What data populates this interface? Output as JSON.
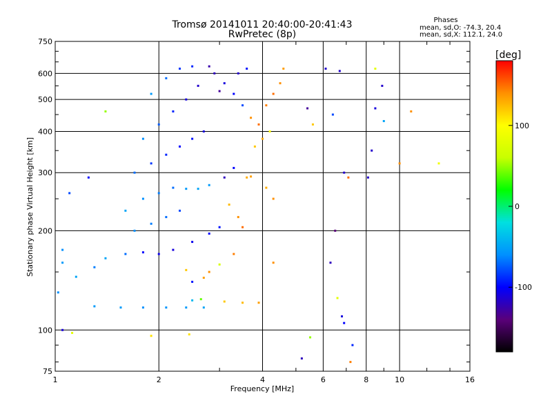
{
  "chart_data": {
    "type": "scatter",
    "title": "Tromsø 20141011 20:40:00-20:41:43",
    "subtitle": "RwPretec (8p)",
    "xlabel": "Frequency [MHz]",
    "ylabel": "Stationary phase Virtual Height [km]",
    "x_scale": "log",
    "y_scale": "log",
    "xlim": [
      1,
      16
    ],
    "ylim": [
      75,
      750
    ],
    "x_ticks": [
      1,
      2,
      4,
      6,
      8,
      10,
      16
    ],
    "x_tick_labels": [
      "1",
      "2",
      "4",
      "6",
      "8",
      "10",
      "16"
    ],
    "y_ticks": [
      75,
      100,
      200,
      300,
      400,
      500,
      600,
      750
    ],
    "y_tick_labels": [
      "75",
      "100",
      "200",
      "300",
      "400",
      "500",
      "600",
      "750"
    ],
    "grid": true,
    "stats_header": "Phases",
    "stats": [
      "mean, sd,O: -74.3, 20.4",
      "mean, sd,X: 112.1, 24.0"
    ],
    "colorbar": {
      "label": "[deg]",
      "range": [
        -180,
        180
      ],
      "ticks": [
        100,
        0,
        -100
      ],
      "tick_labels": [
        "100",
        "0",
        "-100"
      ],
      "colors": [
        "#000000",
        "#5a007a",
        "#0000ff",
        "#0090ff",
        "#00e0e0",
        "#00ff00",
        "#c8ff00",
        "#ffff00",
        "#ff9000",
        "#ff0000"
      ]
    },
    "series": [
      {
        "points": [
          [
            1.02,
            130,
            -60
          ],
          [
            1.3,
            118,
            -55
          ],
          [
            1.55,
            117,
            -55
          ],
          [
            1.8,
            117,
            -60
          ],
          [
            2.1,
            117,
            -58
          ],
          [
            2.4,
            117,
            -55
          ],
          [
            2.7,
            117,
            -50
          ],
          [
            2.5,
            123,
            -40
          ],
          [
            2.65,
            124,
            40
          ],
          [
            3.1,
            122,
            120
          ],
          [
            3.5,
            121,
            125
          ],
          [
            3.9,
            121,
            135
          ],
          [
            1.05,
            100,
            -110
          ],
          [
            1.12,
            98,
            80
          ],
          [
            1.9,
            96,
            110
          ],
          [
            2.45,
            97,
            110
          ],
          [
            2.5,
            140,
            -95
          ],
          [
            2.8,
            150,
            140
          ],
          [
            3.0,
            158,
            70
          ],
          [
            2.4,
            152,
            120
          ],
          [
            2.7,
            144,
            135
          ],
          [
            3.3,
            170,
            145
          ],
          [
            1.05,
            160,
            -55
          ],
          [
            1.15,
            145,
            -50
          ],
          [
            1.3,
            155,
            -65
          ],
          [
            1.05,
            175,
            -60
          ],
          [
            1.4,
            165,
            -50
          ],
          [
            1.6,
            170,
            -70
          ],
          [
            1.8,
            172,
            -100
          ],
          [
            2.0,
            170,
            -105
          ],
          [
            2.2,
            175,
            -110
          ],
          [
            2.5,
            185,
            -105
          ],
          [
            2.8,
            196,
            -100
          ],
          [
            3.0,
            205,
            -95
          ],
          [
            1.7,
            200,
            -60
          ],
          [
            1.9,
            210,
            -65
          ],
          [
            2.1,
            220,
            -70
          ],
          [
            2.3,
            230,
            -80
          ],
          [
            1.6,
            230,
            -50
          ],
          [
            1.8,
            250,
            -60
          ],
          [
            2.0,
            260,
            -65
          ],
          [
            2.2,
            270,
            -70
          ],
          [
            2.4,
            268,
            -55
          ],
          [
            2.6,
            268,
            -50
          ],
          [
            2.8,
            275,
            -55
          ],
          [
            3.1,
            290,
            -120
          ],
          [
            3.3,
            310,
            -100
          ],
          [
            3.6,
            290,
            130
          ],
          [
            3.7,
            292,
            135
          ],
          [
            1.7,
            300,
            -70
          ],
          [
            1.9,
            320,
            -85
          ],
          [
            2.1,
            340,
            -90
          ],
          [
            2.3,
            360,
            -100
          ],
          [
            2.5,
            380,
            -95
          ],
          [
            2.7,
            400,
            -110
          ],
          [
            1.8,
            380,
            -60
          ],
          [
            2.0,
            420,
            -75
          ],
          [
            2.2,
            460,
            -90
          ],
          [
            2.4,
            500,
            -110
          ],
          [
            2.6,
            550,
            -115
          ],
          [
            1.9,
            520,
            -55
          ],
          [
            2.1,
            580,
            -70
          ],
          [
            2.3,
            620,
            -85
          ],
          [
            2.5,
            630,
            -90
          ],
          [
            2.9,
            600,
            -120
          ],
          [
            3.1,
            560,
            -110
          ],
          [
            3.3,
            520,
            -100
          ],
          [
            3.5,
            480,
            -80
          ],
          [
            3.7,
            440,
            140
          ],
          [
            3.9,
            420,
            150
          ],
          [
            4.1,
            480,
            145
          ],
          [
            4.3,
            520,
            150
          ],
          [
            4.5,
            560,
            140
          ],
          [
            4.6,
            620,
            135
          ],
          [
            3.8,
            360,
            120
          ],
          [
            4.0,
            380,
            130
          ],
          [
            4.2,
            400,
            100
          ],
          [
            3.4,
            600,
            -115
          ],
          [
            3.6,
            620,
            -95
          ],
          [
            2.8,
            630,
            -125
          ],
          [
            1.4,
            460,
            50
          ],
          [
            1.25,
            290,
            -100
          ],
          [
            1.1,
            260,
            -80
          ],
          [
            4.1,
            270,
            130
          ],
          [
            4.3,
            250,
            140
          ],
          [
            3.2,
            240,
            125
          ],
          [
            3.4,
            220,
            140
          ],
          [
            3.5,
            205,
            150
          ],
          [
            5.4,
            470,
            -130
          ],
          [
            5.6,
            420,
            120
          ],
          [
            6.4,
            450,
            -80
          ],
          [
            6.5,
            200,
            -140
          ],
          [
            6.9,
            300,
            -115
          ],
          [
            7.1,
            290,
            150
          ],
          [
            6.3,
            160,
            -120
          ],
          [
            6.8,
            110,
            -110
          ],
          [
            6.9,
            105,
            -100
          ],
          [
            6.6,
            125,
            80
          ],
          [
            7.3,
            90,
            -90
          ],
          [
            7.2,
            80,
            145
          ],
          [
            8.5,
            470,
            -110
          ],
          [
            8.9,
            550,
            -115
          ],
          [
            9.0,
            430,
            -50
          ],
          [
            8.1,
            290,
            -115
          ],
          [
            8.3,
            350,
            -115
          ],
          [
            10.0,
            320,
            140
          ],
          [
            10.8,
            460,
            140
          ],
          [
            13.0,
            320,
            90
          ],
          [
            5.2,
            82,
            -120
          ],
          [
            5.5,
            95,
            50
          ],
          [
            6.1,
            620,
            -115
          ],
          [
            6.7,
            610,
            -115
          ],
          [
            8.5,
            620,
            80
          ],
          [
            4.3,
            160,
            140
          ],
          [
            3.0,
            530,
            -130
          ]
        ]
      }
    ]
  }
}
